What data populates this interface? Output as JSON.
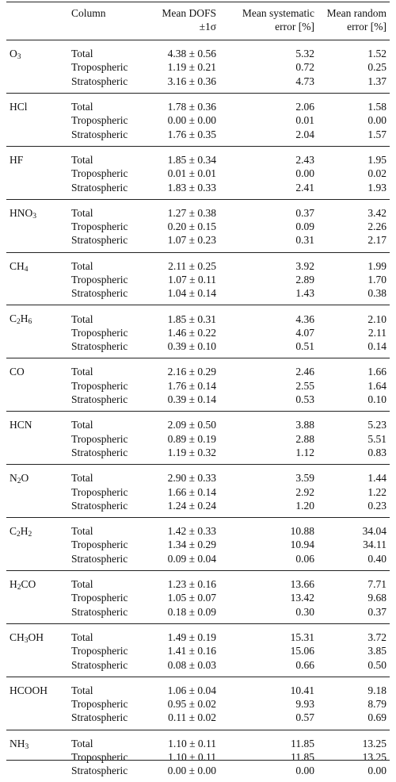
{
  "header": {
    "column": "Column",
    "dofs_line1": "Mean DOFS",
    "dofs_line2": "±1σ",
    "sys_line1": "Mean systematic",
    "sys_line2": "error [%]",
    "rand_line1": "Mean random",
    "rand_line2": "error [%]"
  },
  "groups": [
    {
      "gas_base": "O",
      "gas_sub": "3",
      "gas_tail": "",
      "rows": [
        {
          "column": "Total",
          "dofs": "4.38 ± 0.56",
          "sys": "5.32",
          "rand": "1.52"
        },
        {
          "column": "Tropospheric",
          "dofs": "1.19 ± 0.21",
          "sys": "0.72",
          "rand": "0.25"
        },
        {
          "column": "Stratospheric",
          "dofs": "3.16 ± 0.36",
          "sys": "4.73",
          "rand": "1.37"
        }
      ]
    },
    {
      "gas_base": "HCl",
      "gas_sub": "",
      "gas_tail": "",
      "rows": [
        {
          "column": "Total",
          "dofs": "1.78 ± 0.36",
          "sys": "2.06",
          "rand": "1.58"
        },
        {
          "column": "Tropospheric",
          "dofs": "0.00 ± 0.00",
          "sys": "0.01",
          "rand": "0.00"
        },
        {
          "column": "Stratospheric",
          "dofs": "1.76 ± 0.35",
          "sys": "2.04",
          "rand": "1.57"
        }
      ]
    },
    {
      "gas_base": "HF",
      "gas_sub": "",
      "gas_tail": "",
      "rows": [
        {
          "column": "Total",
          "dofs": "1.85 ± 0.34",
          "sys": "2.43",
          "rand": "1.95"
        },
        {
          "column": "Tropospheric",
          "dofs": "0.01 ± 0.01",
          "sys": "0.00",
          "rand": "0.02"
        },
        {
          "column": "Stratospheric",
          "dofs": "1.83 ± 0.33",
          "sys": "2.41",
          "rand": "1.93"
        }
      ]
    },
    {
      "gas_base": "HNO",
      "gas_sub": "3",
      "gas_tail": "",
      "rows": [
        {
          "column": "Total",
          "dofs": "1.27 ± 0.38",
          "sys": "0.37",
          "rand": "3.42"
        },
        {
          "column": "Tropospheric",
          "dofs": "0.20 ± 0.15",
          "sys": "0.09",
          "rand": "2.26"
        },
        {
          "column": "Stratospheric",
          "dofs": "1.07 ± 0.23",
          "sys": "0.31",
          "rand": "2.17"
        }
      ]
    },
    {
      "gas_base": "CH",
      "gas_sub": "4",
      "gas_tail": "",
      "rows": [
        {
          "column": "Total",
          "dofs": "2.11 ± 0.25",
          "sys": "3.92",
          "rand": "1.99"
        },
        {
          "column": "Tropospheric",
          "dofs": "1.07 ± 0.11",
          "sys": "2.89",
          "rand": "1.70"
        },
        {
          "column": "Stratospheric",
          "dofs": "1.04 ± 0.14",
          "sys": "1.43",
          "rand": "0.38"
        }
      ]
    },
    {
      "gas_base": "C",
      "gas_sub": "2",
      "gas_tail": "H",
      "gas_sub2": "6",
      "rows": [
        {
          "column": "Total",
          "dofs": "1.85 ± 0.31",
          "sys": "4.36",
          "rand": "2.10"
        },
        {
          "column": "Tropospheric",
          "dofs": "1.46 ± 0.22",
          "sys": "4.07",
          "rand": "2.11"
        },
        {
          "column": "Stratospheric",
          "dofs": "0.39 ± 0.10",
          "sys": "0.51",
          "rand": "0.14"
        }
      ]
    },
    {
      "gas_base": "CO",
      "gas_sub": "",
      "gas_tail": "",
      "rows": [
        {
          "column": "Total",
          "dofs": "2.16 ± 0.29",
          "sys": "2.46",
          "rand": "1.66"
        },
        {
          "column": "Tropospheric",
          "dofs": "1.76 ± 0.14",
          "sys": "2.55",
          "rand": "1.64"
        },
        {
          "column": "Stratospheric",
          "dofs": "0.39 ± 0.14",
          "sys": "0.53",
          "rand": "0.10"
        }
      ]
    },
    {
      "gas_base": "HCN",
      "gas_sub": "",
      "gas_tail": "",
      "rows": [
        {
          "column": "Total",
          "dofs": "2.09 ± 0.50",
          "sys": "3.88",
          "rand": "5.23"
        },
        {
          "column": "Tropospheric",
          "dofs": "0.89 ± 0.19",
          "sys": "2.88",
          "rand": "5.51"
        },
        {
          "column": "Stratospheric",
          "dofs": "1.19 ± 0.32",
          "sys": "1.12",
          "rand": "0.83"
        }
      ]
    },
    {
      "gas_base": "N",
      "gas_sub": "2",
      "gas_tail": "O",
      "rows": [
        {
          "column": "Total",
          "dofs": "2.90 ± 0.33",
          "sys": "3.59",
          "rand": "1.44"
        },
        {
          "column": "Tropospheric",
          "dofs": "1.66 ± 0.14",
          "sys": "2.92",
          "rand": "1.22"
        },
        {
          "column": "Stratospheric",
          "dofs": "1.24 ± 0.24",
          "sys": "1.20",
          "rand": "0.23"
        }
      ]
    },
    {
      "gas_base": "C",
      "gas_sub": "2",
      "gas_tail": "H",
      "gas_sub2": "2",
      "rows": [
        {
          "column": "Total",
          "dofs": "1.42 ± 0.33",
          "sys": "10.88",
          "rand": "34.04"
        },
        {
          "column": "Tropospheric",
          "dofs": "1.34 ± 0.29",
          "sys": "10.94",
          "rand": "34.11"
        },
        {
          "column": "Stratospheric",
          "dofs": "0.09 ± 0.04",
          "sys": "0.06",
          "rand": "0.40"
        }
      ]
    },
    {
      "gas_base": "H",
      "gas_sub": "2",
      "gas_tail": "CO",
      "rows": [
        {
          "column": "Total",
          "dofs": "1.23 ± 0.16",
          "sys": "13.66",
          "rand": "7.71"
        },
        {
          "column": "Tropospheric",
          "dofs": "1.05 ± 0.07",
          "sys": "13.42",
          "rand": "9.68"
        },
        {
          "column": "Stratospheric",
          "dofs": "0.18 ± 0.09",
          "sys": "0.30",
          "rand": "0.37"
        }
      ]
    },
    {
      "gas_base": "CH",
      "gas_sub": "3",
      "gas_tail": "OH",
      "rows": [
        {
          "column": "Total",
          "dofs": "1.49 ± 0.19",
          "sys": "15.31",
          "rand": "3.72"
        },
        {
          "column": "Tropospheric",
          "dofs": "1.41 ± 0.16",
          "sys": "15.06",
          "rand": "3.85"
        },
        {
          "column": "Stratospheric",
          "dofs": "0.08 ± 0.03",
          "sys": "0.66",
          "rand": "0.50"
        }
      ]
    },
    {
      "gas_base": "HCOOH",
      "gas_sub": "",
      "gas_tail": "",
      "rows": [
        {
          "column": "Total",
          "dofs": "1.06 ± 0.04",
          "sys": "10.41",
          "rand": "9.18"
        },
        {
          "column": "Tropospheric",
          "dofs": "0.95 ± 0.02",
          "sys": "9.93",
          "rand": "8.79"
        },
        {
          "column": "Stratospheric",
          "dofs": "0.11 ± 0.02",
          "sys": "0.57",
          "rand": "0.69"
        }
      ]
    },
    {
      "gas_base": "NH",
      "gas_sub": "3",
      "gas_tail": "",
      "rows": [
        {
          "column": "Total",
          "dofs": "1.10 ± 0.11",
          "sys": "11.85",
          "rand": "13.25"
        },
        {
          "column": "Tropospheric",
          "dofs": "1.10 ± 0.11",
          "sys": "11.85",
          "rand": "13.25"
        },
        {
          "column": "Stratospheric",
          "dofs": "0.00 ± 0.00",
          "sys": "0.00",
          "rand": "0.00"
        }
      ]
    }
  ]
}
